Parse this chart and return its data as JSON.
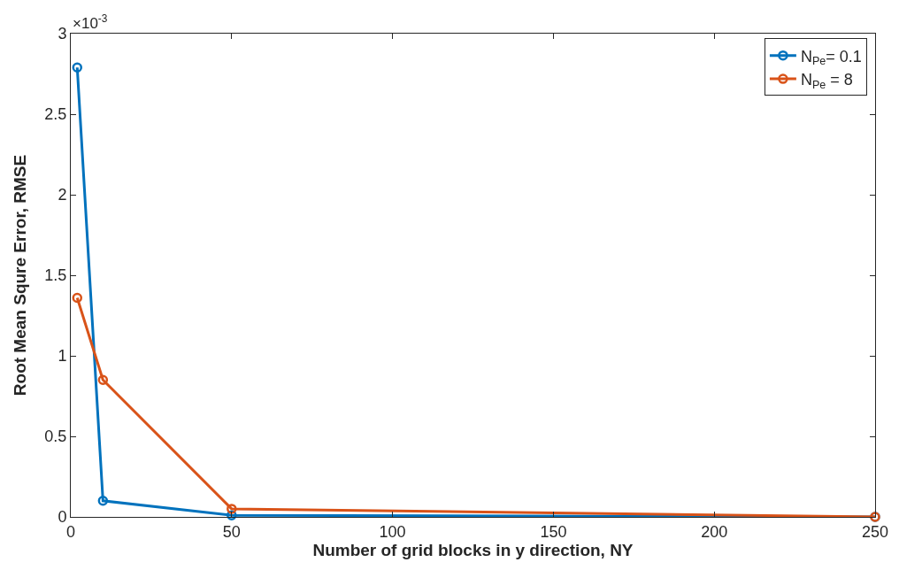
{
  "chart_data": {
    "type": "line",
    "xlabel": "Number of grid blocks in y direction, NY",
    "ylabel": "Root Mean Squre Error, RMSE",
    "x": [
      2,
      10,
      50,
      250
    ],
    "series": [
      {
        "name": "N$_{Pe}$= 0.1",
        "color": "#0072bd",
        "values": [
          2.79,
          0.1,
          0.01,
          0
        ]
      },
      {
        "name": "N$_{Pe}$ = 8",
        "color": "#d95319",
        "values": [
          1.36,
          0.85,
          0.05,
          0
        ]
      }
    ],
    "xlim": [
      0,
      250
    ],
    "xticks": [
      0,
      50,
      100,
      150,
      200,
      250
    ],
    "ylim": [
      0,
      3
    ],
    "yticks": [
      0,
      0.5,
      1,
      1.5,
      2,
      2.5,
      3
    ],
    "annotations": [
      "×10$^{-3}$"
    ],
    "legend": "top right",
    "marker": "circle",
    "line_style": "solid"
  }
}
